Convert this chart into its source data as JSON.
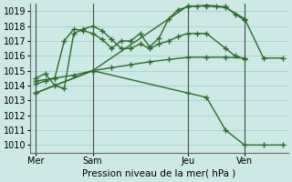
{
  "xlabel": "Pression niveau de la mer( hPa )",
  "ylim": [
    1009.5,
    1019.5
  ],
  "yticks": [
    1010,
    1011,
    1012,
    1013,
    1014,
    1015,
    1016,
    1017,
    1018,
    1019
  ],
  "xtick_labels": [
    "Mer",
    "Sam",
    "Jeu",
    "Ven"
  ],
  "xtick_positions": [
    0,
    3,
    8,
    11
  ],
  "bg_color": "#cce9e5",
  "grid_color": "#aad4cf",
  "line_color": "#2d6b2d",
  "vline_color": "#4a4a4a",
  "lines": [
    {
      "x": [
        0,
        0.5,
        1,
        1.5,
        2,
        2.5,
        3,
        3.5,
        4,
        4.5,
        5,
        5.5,
        6,
        6.5,
        7,
        7.5,
        8,
        8.5,
        9,
        9.5,
        10,
        10.5,
        11
      ],
      "y": [
        1014.1,
        1014.3,
        1014.5,
        1017.0,
        1017.8,
        1017.7,
        1017.5,
        1017.1,
        1016.5,
        1017.0,
        1017.0,
        1017.5,
        1016.6,
        1017.2,
        1018.5,
        1019.1,
        1019.3,
        1019.35,
        1019.4,
        1019.35,
        1019.3,
        1018.8,
        1018.4
      ]
    },
    {
      "x": [
        0,
        0.5,
        1,
        1.5,
        2,
        2.5,
        3,
        3.5,
        4,
        4.5,
        5,
        5.5,
        6,
        6.5,
        7,
        7.5,
        8,
        8.5,
        9,
        10,
        10.5,
        11
      ],
      "y": [
        1014.5,
        1014.8,
        1014.0,
        1013.8,
        1017.5,
        1017.8,
        1018.0,
        1017.7,
        1017.1,
        1016.5,
        1016.5,
        1016.8,
        1016.5,
        1016.8,
        1017.0,
        1017.3,
        1017.5,
        1017.5,
        1017.5,
        1016.5,
        1016.0,
        1015.8
      ]
    },
    {
      "x": [
        0,
        1,
        2,
        3,
        4,
        5,
        6,
        7,
        8,
        9,
        10,
        11
      ],
      "y": [
        1014.3,
        1014.5,
        1014.7,
        1015.0,
        1015.2,
        1015.4,
        1015.6,
        1015.75,
        1015.9,
        1015.9,
        1015.9,
        1015.85
      ]
    },
    {
      "x": [
        0,
        3,
        8,
        9,
        10,
        11,
        12,
        13
      ],
      "y": [
        1013.5,
        1015.0,
        1019.35,
        1019.35,
        1019.25,
        1018.5,
        1015.85,
        1015.85
      ]
    },
    {
      "x": [
        0,
        3,
        8,
        9,
        10,
        11,
        12,
        13
      ],
      "y": [
        1013.5,
        1015.0,
        1013.5,
        1013.2,
        1011.0,
        1010.0,
        1010.0,
        1010.0
      ]
    }
  ],
  "vlines_x": [
    0,
    3,
    8,
    11
  ],
  "xlim": [
    -0.3,
    13.3
  ]
}
